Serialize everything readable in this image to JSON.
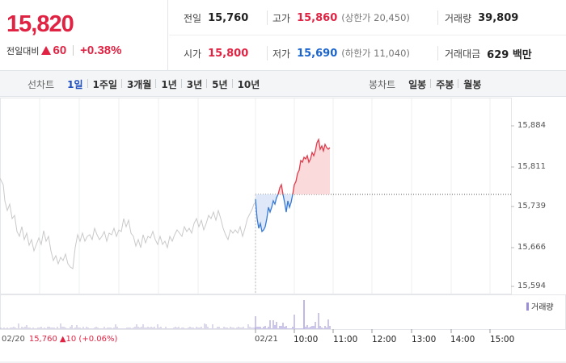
{
  "summary": {
    "price": "15,820",
    "change_label": "전일대비",
    "change_amount": "60",
    "change_percent": "+0.38%",
    "prev_close_label": "전일",
    "prev_close": "15,760",
    "high_label": "고가",
    "high": "15,860",
    "upper_limit_label": "(상한가 20,450)",
    "volume_label": "거래량",
    "volume": "39,809",
    "open_label": "시가",
    "open": "15,800",
    "low_label": "저가",
    "low": "15,690",
    "lower_limit_label": "(하한가 11,040)",
    "value_label": "거래대금",
    "value": "629 백만",
    "colors": {
      "up": "#e12343",
      "down": "#1a64cc",
      "active_tab": "#1f4fbf"
    }
  },
  "tabs": {
    "line_label": "선차트",
    "line_tabs": [
      "1일",
      "1주일",
      "3개월",
      "1년",
      "3년",
      "5년",
      "10년"
    ],
    "active": "1일",
    "candle_label": "봉차트",
    "candle_tabs": [
      "일봉",
      "주봉",
      "월봉"
    ]
  },
  "chart": {
    "y_ticks": [
      "15,884",
      "15,811",
      "15,739",
      "15,666",
      "15,594"
    ],
    "x_ticks": [
      "02/21",
      "10:00",
      "11:00",
      "12:00",
      "13:00",
      "14:00",
      "15:00"
    ],
    "prev_day": {
      "date": "02/20",
      "price": "15,760",
      "change": "10 (+0.06%)"
    },
    "volume_legend": "거래량"
  }
}
